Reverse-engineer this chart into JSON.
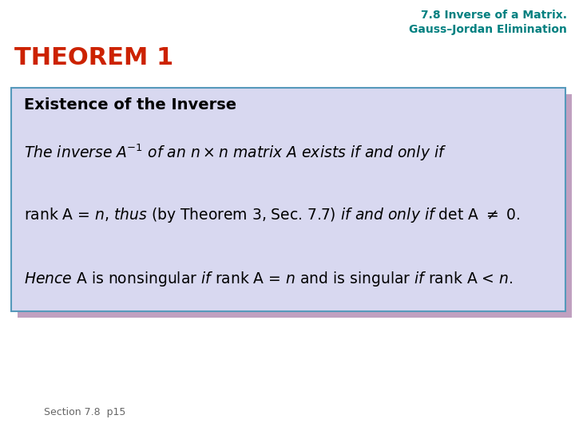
{
  "bg_color": "#ffffff",
  "header_line1": "7.8 Inverse of a Matrix.",
  "header_line2": "Gauss–Jordan Elimination",
  "header_color": "#008080",
  "theorem_label": "THEOREM 1",
  "theorem_color": "#cc2200",
  "box_bg": "#d8d8f0",
  "box_border": "#5599bb",
  "box_shadow": "#c0a0c0",
  "box_title": "Existence of the Inverse",
  "box_title_color": "#000000",
  "footer": "Section 7.8  p15",
  "footer_color": "#666666"
}
